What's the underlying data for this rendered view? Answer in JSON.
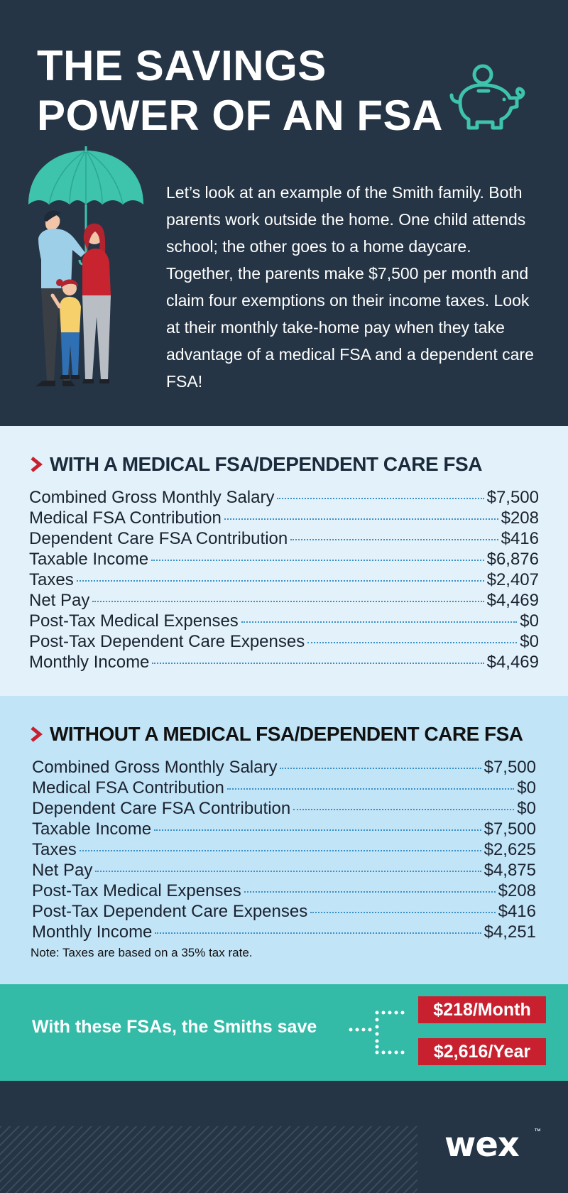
{
  "header": {
    "title_line1": "THE SAVINGS",
    "title_line2": "POWER OF AN FSA",
    "intro": "Let’s look at an example of the Smith family. Both parents work outside the home. One child attends school; the other goes to a home daycare. Together, the parents  make $7,500 per month and claim four exemptions on their income taxes. Look at their monthly take-home pay when they take advantage of a medical FSA and a dependent care FSA!",
    "icons": [
      "piggy-bank-icon",
      "family-umbrella-illustration"
    ]
  },
  "with_fsa": {
    "heading": "WITH A MEDICAL FSA/DEPENDENT CARE FSA",
    "rows": [
      {
        "label": "Combined Gross Monthly Salary ",
        "value": "$7,500"
      },
      {
        "label": "Medical FSA Contribution",
        "value": "$208"
      },
      {
        "label": "Dependent Care FSA Contribution ",
        "value": "$416"
      },
      {
        "label": "Taxable Income",
        "value": "$6,876"
      },
      {
        "label": "Taxes",
        "value": "$2,407"
      },
      {
        "label": "Net Pay",
        "value": "$4,469"
      },
      {
        "label": "Post-Tax Medical Expenses",
        "value": "$0"
      },
      {
        "label": "Post-Tax Dependent Care Expenses",
        "value": "$0"
      },
      {
        "label": "Monthly Income ",
        "value": "$4,469"
      }
    ]
  },
  "without_fsa": {
    "heading": "WITHOUT A MEDICAL FSA/DEPENDENT CARE FSA",
    "rows": [
      {
        "label": "Combined Gross Monthly Salary ",
        "value": "$7,500"
      },
      {
        "label": "Medical FSA Contribution",
        "value": "$0"
      },
      {
        "label": "Dependent Care FSA Contribution ",
        "value": "$0"
      },
      {
        "label": "Taxable Income",
        "value": "$7,500"
      },
      {
        "label": "Taxes",
        "value": "$2,625"
      },
      {
        "label": "Net Pay ",
        "value": "$4,875"
      },
      {
        "label": "Post-Tax Medical Expenses",
        "value": "$208"
      },
      {
        "label": "Post-Tax Dependent Care Expenses",
        "value": "$416"
      },
      {
        "label": "Monthly Income ",
        "value": "$4,251"
      }
    ],
    "note": "Note: Taxes are based on a 35% tax rate."
  },
  "savings": {
    "text": "With these FSAs, the Smiths save",
    "monthly": "$218/Month",
    "yearly": "$2,616/Year"
  },
  "footer": {
    "logo": "wex",
    "trademark": "™"
  },
  "colors": {
    "navy": "#253545",
    "light_blue": "#e3f2fa",
    "mid_blue": "#c2e4f7",
    "teal": "#33bba8",
    "red": "#c8202f",
    "dot_blue": "#3a8fc6"
  }
}
